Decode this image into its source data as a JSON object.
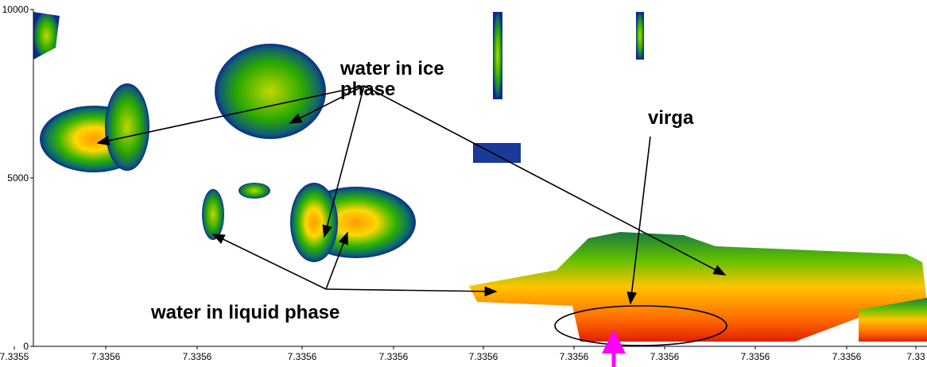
{
  "chart_data": {
    "type": "time-height",
    "categories": [
      "7.3355",
      "7.3356",
      "7.3356",
      "7.3356",
      "7.3356",
      "7.3356",
      "7.3356",
      "7.3356",
      "7.3356",
      "7.3356",
      "7.33"
    ],
    "ylim": [
      0,
      10000
    ],
    "yticks": [
      0,
      5000,
      10000
    ],
    "annotations": [
      "water in ice phase",
      "virga",
      "water in liquid phase"
    ]
  }
}
